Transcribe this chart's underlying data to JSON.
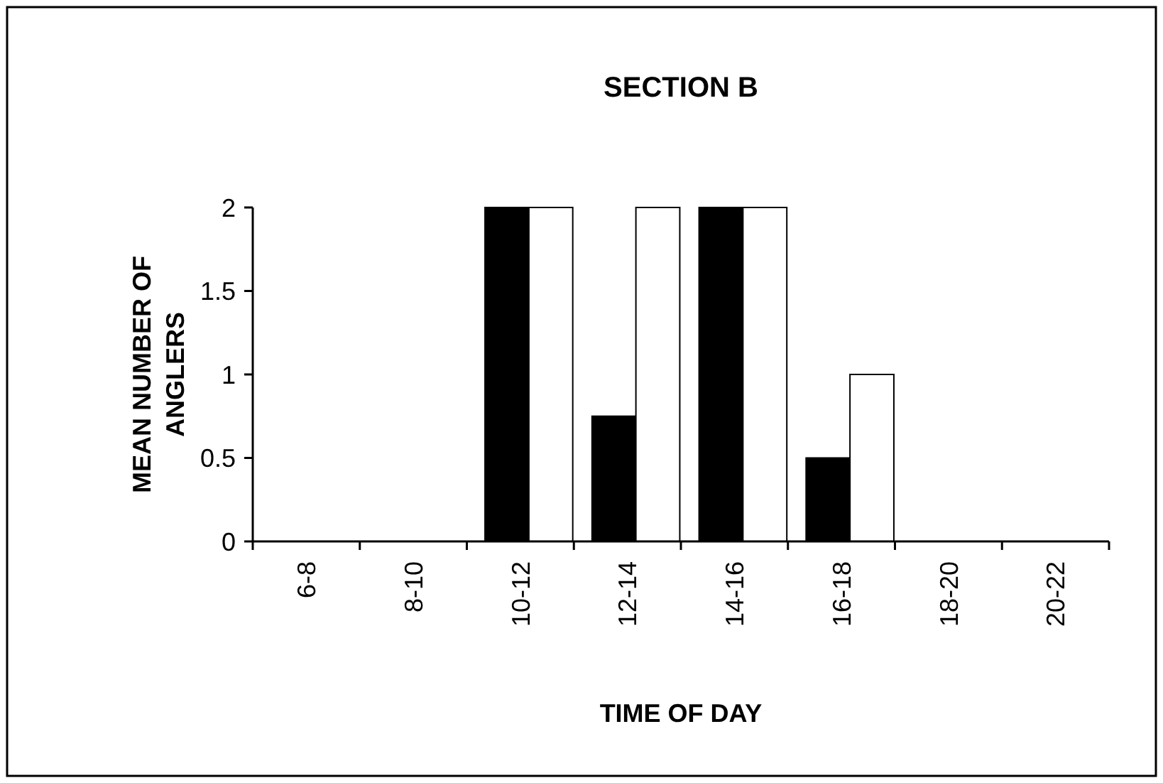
{
  "chart_data": {
    "type": "bar",
    "title": "SECTION B",
    "xlabel": "TIME OF DAY",
    "ylabel": "MEAN NUMBER OF ANGLERS",
    "categories": [
      "6-8",
      "8-10",
      "10-12",
      "12-14",
      "14-16",
      "16-18",
      "18-20",
      "20-22"
    ],
    "series": [
      {
        "color": "#000000",
        "values": [
          0,
          0,
          2,
          0.75,
          2,
          0.5,
          0,
          0
        ]
      },
      {
        "color": "#ffffff",
        "values": [
          0,
          0,
          2,
          2,
          2,
          1,
          0,
          0
        ]
      }
    ],
    "ylim": [
      0,
      2
    ],
    "yticks": [
      0,
      0.5,
      1,
      1.5,
      2
    ],
    "grid": false
  }
}
